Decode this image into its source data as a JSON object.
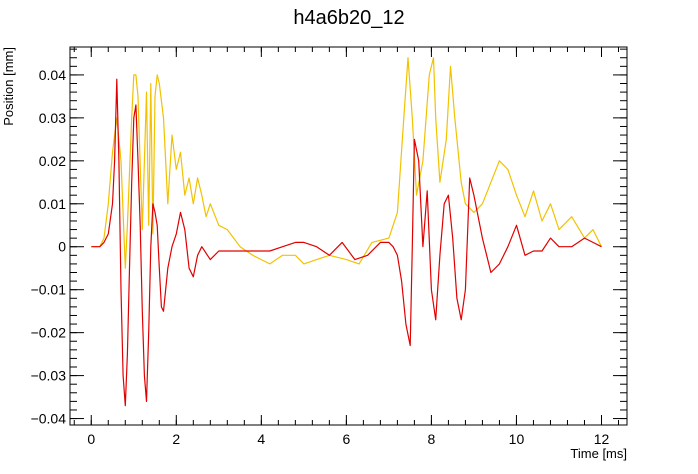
{
  "chart_data": {
    "type": "line",
    "title": "h4a6b20_12",
    "xlabel": "Time [ms]",
    "ylabel": "Position [mm]",
    "xlim": [
      -0.5,
      12.6
    ],
    "ylim": [
      -0.0415,
      0.0465
    ],
    "xticks": [
      0,
      2,
      4,
      6,
      8,
      10,
      12
    ],
    "xtick_labels": [
      "0",
      "2",
      "4",
      "6",
      "8",
      "10",
      "12"
    ],
    "yticks": [
      -0.04,
      -0.03,
      -0.02,
      -0.01,
      0,
      0.01,
      0.02,
      0.03,
      0.04
    ],
    "ytick_labels": [
      "−0.04",
      "−0.03",
      "−0.02",
      "−0.01",
      "0",
      "0.01",
      "0.02",
      "0.03",
      "0.04"
    ],
    "grid": false,
    "legend": "none",
    "series": [
      {
        "color": "#f2c200",
        "x": [
          0,
          0.2,
          0.3,
          0.4,
          0.5,
          0.6,
          0.7,
          0.8,
          0.85,
          0.95,
          1.0,
          1.05,
          1.1,
          1.2,
          1.3,
          1.35,
          1.4,
          1.45,
          1.5,
          1.55,
          1.6,
          1.7,
          1.8,
          1.9,
          2.0,
          2.1,
          2.2,
          2.3,
          2.4,
          2.5,
          2.6,
          2.7,
          2.8,
          3.0,
          3.2,
          3.5,
          3.8,
          4.0,
          4.2,
          4.5,
          4.8,
          5.0,
          5.3,
          5.6,
          6.0,
          6.3,
          6.6,
          7.0,
          7.2,
          7.35,
          7.45,
          7.55,
          7.65,
          7.8,
          7.95,
          8.05,
          8.1,
          8.2,
          8.35,
          8.45,
          8.55,
          8.7,
          8.8,
          9.0,
          9.2,
          9.4,
          9.6,
          9.8,
          10.0,
          10.2,
          10.4,
          10.6,
          10.8,
          11.0,
          11.3,
          11.6,
          11.8,
          12.0
        ],
        "y": [
          0,
          0,
          0.002,
          0.01,
          0.022,
          0.03,
          0.02,
          -0.005,
          0.005,
          0.03,
          0.04,
          0.04,
          0.035,
          0.004,
          0.036,
          0.005,
          0.038,
          0.003,
          0.035,
          0.04,
          0.038,
          0.03,
          0.01,
          0.026,
          0.018,
          0.022,
          0.012,
          0.016,
          0.01,
          0.016,
          0.012,
          0.007,
          0.01,
          0.005,
          0.004,
          0,
          -0.002,
          -0.003,
          -0.004,
          -0.002,
          -0.002,
          -0.004,
          -0.003,
          -0.002,
          -0.003,
          -0.004,
          0.001,
          0.002,
          0.008,
          0.03,
          0.044,
          0.03,
          0.012,
          0.02,
          0.04,
          0.044,
          0.03,
          0.015,
          0.025,
          0.042,
          0.03,
          0.015,
          0.01,
          0.008,
          0.01,
          0.015,
          0.02,
          0.018,
          0.012,
          0.007,
          0.013,
          0.006,
          0.01,
          0.004,
          0.007,
          0.002,
          0.004,
          0
        ]
      },
      {
        "color": "#e00000",
        "x": [
          0,
          0.2,
          0.3,
          0.4,
          0.5,
          0.55,
          0.6,
          0.65,
          0.7,
          0.75,
          0.8,
          0.85,
          0.9,
          0.95,
          1.0,
          1.05,
          1.1,
          1.15,
          1.2,
          1.25,
          1.3,
          1.35,
          1.4,
          1.45,
          1.5,
          1.55,
          1.6,
          1.65,
          1.7,
          1.8,
          1.9,
          2.0,
          2.1,
          2.2,
          2.3,
          2.4,
          2.5,
          2.6,
          2.8,
          3.0,
          3.3,
          3.6,
          3.9,
          4.2,
          4.5,
          4.8,
          5.0,
          5.3,
          5.6,
          5.9,
          6.2,
          6.5,
          6.8,
          7.0,
          7.1,
          7.2,
          7.3,
          7.4,
          7.5,
          7.55,
          7.6,
          7.7,
          7.8,
          7.9,
          8.0,
          8.1,
          8.2,
          8.3,
          8.4,
          8.5,
          8.6,
          8.7,
          8.8,
          8.9,
          9.0,
          9.2,
          9.4,
          9.6,
          9.8,
          10.0,
          10.2,
          10.4,
          10.6,
          10.8,
          11.0,
          11.3,
          11.6,
          11.8,
          12.0
        ],
        "y": [
          0,
          0,
          0.001,
          0.003,
          0.01,
          0.02,
          0.039,
          0.02,
          -0.01,
          -0.03,
          -0.037,
          -0.025,
          -0.005,
          0.015,
          0.03,
          0.033,
          0.02,
          0.005,
          -0.015,
          -0.03,
          -0.036,
          -0.02,
          0.0,
          0.01,
          0.008,
          0.005,
          -0.005,
          -0.014,
          -0.015,
          -0.005,
          0.0,
          0.003,
          0.008,
          0.004,
          -0.005,
          -0.007,
          -0.002,
          0.0,
          -0.003,
          -0.001,
          -0.001,
          -0.001,
          -0.001,
          -0.001,
          0.0,
          0.001,
          0.001,
          0.0,
          -0.002,
          0.001,
          -0.003,
          -0.002,
          0.001,
          0.001,
          0.0,
          -0.002,
          -0.008,
          -0.018,
          -0.023,
          0.0,
          0.025,
          0.02,
          0.0,
          0.013,
          -0.01,
          -0.017,
          -0.002,
          0.01,
          0.012,
          0.002,
          -0.012,
          -0.017,
          -0.01,
          0.016,
          0.012,
          0.002,
          -0.006,
          -0.004,
          0.0,
          0.005,
          -0.002,
          -0.001,
          -0.001,
          0.002,
          0.0,
          0.0,
          0.002,
          0.001,
          0.0
        ]
      }
    ]
  }
}
